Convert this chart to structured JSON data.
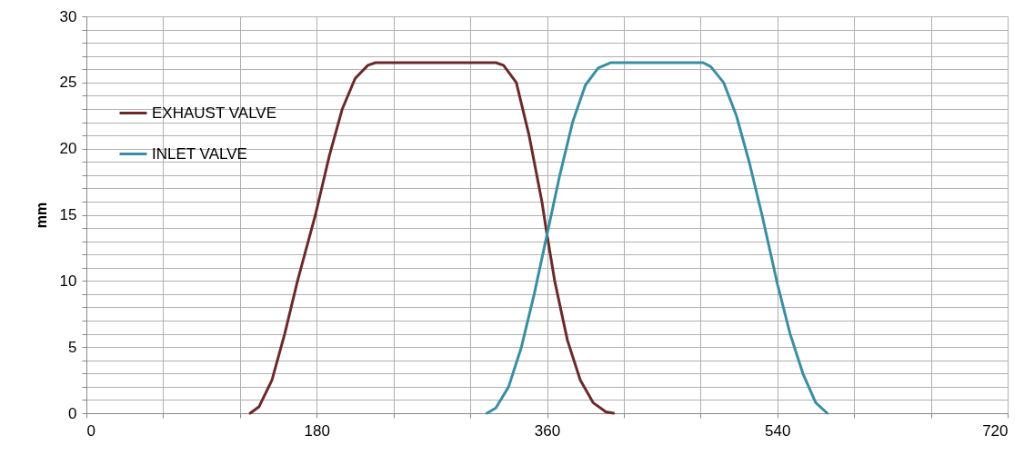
{
  "chart_data": {
    "type": "line",
    "ylabel": "mm",
    "xlim": [
      0,
      720
    ],
    "ylim": [
      0,
      30
    ],
    "xticks": [
      0,
      {
        "value": 60,
        "label": null
      },
      {
        "value": 120,
        "label": null
      },
      180,
      {
        "value": 240,
        "label": null
      },
      {
        "value": 300,
        "label": null
      },
      360,
      {
        "value": 420,
        "label": null
      },
      {
        "value": 480,
        "label": null
      },
      540,
      {
        "value": 600,
        "label": null
      },
      {
        "value": 660,
        "label": null
      },
      720
    ],
    "yticks": [
      0,
      {
        "value": 1,
        "label": null
      },
      {
        "value": 2,
        "label": null
      },
      {
        "value": 3,
        "label": null
      },
      {
        "value": 4,
        "label": null
      },
      5,
      {
        "value": 6,
        "label": null
      },
      {
        "value": 7,
        "label": null
      },
      {
        "value": 8,
        "label": null
      },
      {
        "value": 9,
        "label": null
      },
      10,
      {
        "value": 11,
        "label": null
      },
      {
        "value": 12,
        "label": null
      },
      {
        "value": 13,
        "label": null
      },
      {
        "value": 14,
        "label": null
      },
      15,
      {
        "value": 16,
        "label": null
      },
      {
        "value": 17,
        "label": null
      },
      {
        "value": 18,
        "label": null
      },
      {
        "value": 19,
        "label": null
      },
      20,
      {
        "value": 21,
        "label": null
      },
      {
        "value": 22,
        "label": null
      },
      {
        "value": 23,
        "label": null
      },
      {
        "value": 24,
        "label": null
      },
      25,
      {
        "value": 26,
        "label": null
      },
      {
        "value": 27,
        "label": null
      },
      {
        "value": 28,
        "label": null
      },
      {
        "value": 29,
        "label": null
      },
      30
    ],
    "grid": true,
    "legend": "top left",
    "marker": "none",
    "line_style": "solid",
    "series": [
      {
        "name": "EXHAUST VALVE",
        "color": "#6b2a2a",
        "x": [
          128,
          135,
          145,
          155,
          165,
          179,
          190,
          200,
          210,
          220,
          226,
          320,
          326,
          336,
          346,
          356,
          360,
          366,
          376,
          386,
          396,
          406,
          412
        ],
        "values": [
          0,
          0.5,
          2.5,
          6,
          10,
          15,
          19.5,
          23,
          25.3,
          26.3,
          26.5,
          26.5,
          26.3,
          25,
          21,
          16,
          13.5,
          10,
          5.5,
          2.5,
          0.8,
          0.1,
          0
        ]
      },
      {
        "name": "INLET VALVE",
        "color": "#3a8ea3",
        "x": [
          313,
          320,
          330,
          340,
          350,
          360,
          370,
          380,
          390,
          400,
          410,
          482,
          488,
          498,
          508,
          518,
          528,
          540,
          550,
          560,
          570,
          579
        ],
        "values": [
          0,
          0.4,
          2,
          5,
          9,
          13.5,
          18,
          22,
          24.8,
          26.1,
          26.5,
          26.5,
          26.2,
          25,
          22.5,
          19,
          15,
          9.8,
          6,
          3,
          0.8,
          0
        ]
      }
    ]
  }
}
